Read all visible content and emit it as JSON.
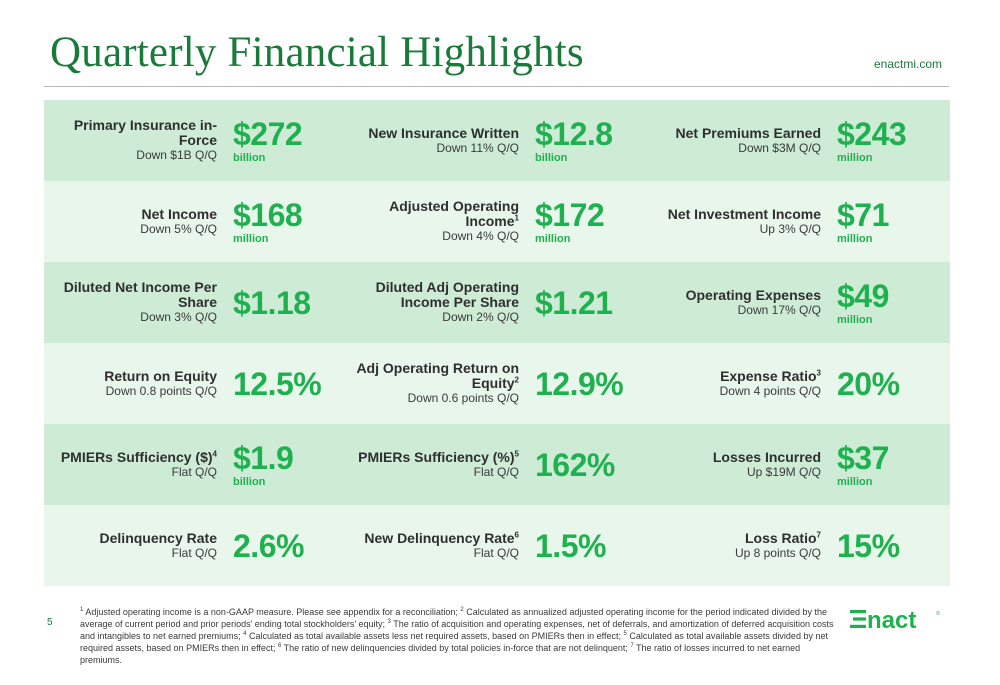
{
  "header": {
    "title": "Quarterly Financial Highlights",
    "site": "enactmi.com"
  },
  "rows": [
    [
      {
        "name": "Primary Insurance in-Force",
        "sup": "",
        "sub": "Down $1B Q/Q",
        "value": "$272",
        "unit": "billion"
      },
      {
        "name": "New Insurance Written",
        "sup": "",
        "sub": "Down 11% Q/Q",
        "value": "$12.8",
        "unit": "billion"
      },
      {
        "name": "Net Premiums Earned",
        "sup": "",
        "sub": "Down $3M Q/Q",
        "value": "$243",
        "unit": "million"
      }
    ],
    [
      {
        "name": "Net Income",
        "sup": "",
        "sub": "Down 5% Q/Q",
        "value": "$168",
        "unit": "million"
      },
      {
        "name": "Adjusted Operating Income",
        "sup": "1",
        "sub": "Down 4% Q/Q",
        "value": "$172",
        "unit": "million"
      },
      {
        "name": "Net Investment Income",
        "sup": "",
        "sub": "Up 3% Q/Q",
        "value": "$71",
        "unit": "million"
      }
    ],
    [
      {
        "name": "Diluted Net Income Per Share",
        "sup": "",
        "sub": "Down 3% Q/Q",
        "value": "$1.18",
        "unit": ""
      },
      {
        "name": "Diluted Adj Operating Income Per Share",
        "sup": "",
        "sub": "Down 2% Q/Q",
        "value": "$1.21",
        "unit": ""
      },
      {
        "name": "Operating Expenses",
        "sup": "",
        "sub": "Down 17% Q/Q",
        "value": "$49",
        "unit": "million"
      }
    ],
    [
      {
        "name": "Return on Equity",
        "sup": "",
        "sub": "Down 0.8 points Q/Q",
        "value": "12.5%",
        "unit": ""
      },
      {
        "name": "Adj Operating Return on Equity",
        "sup": "2",
        "sub": "Down 0.6 points Q/Q",
        "value": "12.9%",
        "unit": ""
      },
      {
        "name": "Expense Ratio",
        "sup": "3",
        "sub": "Down 4 points Q/Q",
        "value": "20%",
        "unit": ""
      }
    ],
    [
      {
        "name": "PMIERs Sufficiency ($)",
        "sup": "4",
        "sub": "Flat Q/Q",
        "value": "$1.9",
        "unit": "billion"
      },
      {
        "name": "PMIERs Sufficiency (%)",
        "sup": "5",
        "sub": "Flat Q/Q",
        "value": "162%",
        "unit": ""
      },
      {
        "name": "Losses Incurred",
        "sup": "",
        "sub": "Up $19M Q/Q",
        "value": "$37",
        "unit": "million"
      }
    ],
    [
      {
        "name": "Delinquency Rate",
        "sup": "",
        "sub": "Flat Q/Q",
        "value": "2.6%",
        "unit": ""
      },
      {
        "name": "New Delinquency Rate",
        "sup": "6",
        "sub": "Flat Q/Q",
        "value": "1.5%",
        "unit": ""
      },
      {
        "name": "Loss Ratio",
        "sup": "7",
        "sub": "Up 8 points Q/Q",
        "value": "15%",
        "unit": ""
      }
    ]
  ],
  "footer": {
    "page_number": "5",
    "footnotes": [
      {
        "num": "1",
        "text": " Adjusted operating income is a non-GAAP measure. Please see appendix for a reconciliation; "
      },
      {
        "num": "2",
        "text": " Calculated as annualized adjusted operating income for the period indicated divided by the average of current period and prior periods’ ending total stockholders’ equity; "
      },
      {
        "num": "3",
        "text": " The ratio of acquisition and operating expenses, net of deferrals, and amortization of deferred acquisition costs and intangibles to net earned premiums; "
      },
      {
        "num": "4",
        "text": " Calculated as total available assets less net required assets, based on PMIERs then in effect; "
      },
      {
        "num": "5",
        "text": " Calculated as total available assets divided by net required assets, based on PMIERs then in effect;  "
      },
      {
        "num": "6",
        "text": " The ratio of new delinquencies divided by total policies in-force that are not delinquent; "
      },
      {
        "num": "7",
        "text": " The ratio of losses incurred to net earned premiums."
      }
    ],
    "logo_text": "Enact",
    "logo_mark": "®"
  },
  "colors": {
    "title_green": "#1a7a3a",
    "value_green": "#1fb150",
    "row_dark": "#cdebd5",
    "row_light": "#e8f6ec"
  }
}
